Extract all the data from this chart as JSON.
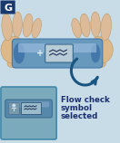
{
  "bg_color": "#c8dce8",
  "title_box_color": "#1a3a6e",
  "title_letter": "G",
  "title_letter_color": "#ffffff",
  "device_color": "#6699bb",
  "device_dark": "#4477aa",
  "device_light": "#99bbdd",
  "arrow_color": "#1a5580",
  "text_color": "#1a2e6e",
  "text_lines": [
    "Flow check",
    "symbol",
    "selected"
  ],
  "inset_bg": "#7aaabb",
  "inset_border": "#4488aa",
  "hand_color": "#ddb888",
  "hand_edge": "#bb9966",
  "counter_bg": "#aaccdd",
  "counter_text": "#223355",
  "finger_color": "#ddbb99",
  "finger_edge": "#bb9966"
}
